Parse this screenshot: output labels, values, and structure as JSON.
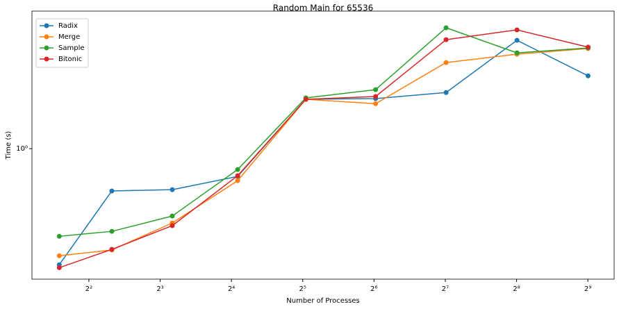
{
  "chart_data": {
    "type": "line",
    "title": "Random Main for 65536",
    "xlabel": "Number of Processes",
    "ylabel": "Time (s)",
    "xscale": "log",
    "yscale": "log",
    "x": [
      3,
      5,
      9,
      17,
      33,
      65,
      129,
      257,
      513
    ],
    "xlim": [
      2.3,
      661
    ],
    "ylim": [
      0.16,
      6.9
    ],
    "xticks": [
      {
        "value": 4,
        "label": "2²"
      },
      {
        "value": 8,
        "label": "2³"
      },
      {
        "value": 16,
        "label": "2⁴"
      },
      {
        "value": 32,
        "label": "2⁵"
      },
      {
        "value": 64,
        "label": "2⁶"
      },
      {
        "value": 128,
        "label": "2⁷"
      },
      {
        "value": 256,
        "label": "2⁸"
      },
      {
        "value": 512,
        "label": "2⁹"
      }
    ],
    "yticks": [
      {
        "value": 1,
        "label": "10⁰"
      }
    ],
    "legend": "upper left",
    "series": [
      {
        "name": "Radix",
        "color": "#1f77b4",
        "values": [
          0.196,
          0.552,
          0.562,
          0.677,
          2.0,
          2.02,
          2.2,
          4.58,
          2.78
        ]
      },
      {
        "name": "Merge",
        "color": "#ff7f0e",
        "values": [
          0.222,
          0.241,
          0.352,
          0.638,
          2.0,
          1.88,
          3.35,
          3.77,
          4.08
        ]
      },
      {
        "name": "Sample",
        "color": "#2ca02c",
        "values": [
          0.292,
          0.313,
          0.388,
          0.746,
          2.04,
          2.29,
          5.46,
          3.84,
          4.11
        ]
      },
      {
        "name": "Bitonic",
        "color": "#d62728",
        "values": [
          0.188,
          0.243,
          0.339,
          0.684,
          2.0,
          2.08,
          4.62,
          5.3,
          4.16
        ]
      }
    ]
  }
}
